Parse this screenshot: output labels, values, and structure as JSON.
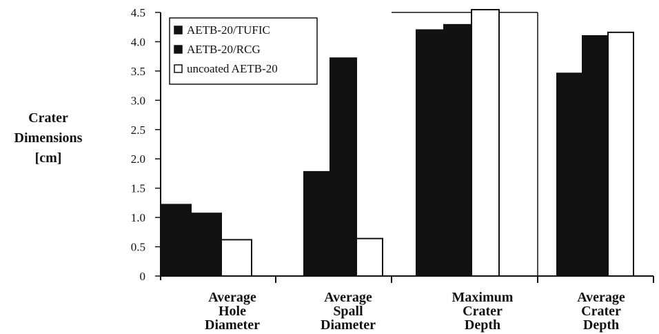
{
  "chart_data": {
    "type": "bar",
    "categories": [
      [
        "Average",
        "Hole",
        "Diameter"
      ],
      [
        "Average",
        "Spall",
        "Diameter"
      ],
      [
        "Maximum",
        "Crater",
        "Depth"
      ],
      [
        "Average",
        "Crater",
        "Depth"
      ]
    ],
    "series": [
      {
        "name": "AETB-20/TUFIC",
        "color": "#111111",
        "values": [
          1.22,
          1.78,
          4.2,
          3.46
        ]
      },
      {
        "name": "AETB-20/RCG",
        "color": "#111111",
        "values": [
          1.07,
          3.72,
          4.29,
          4.1
        ]
      },
      {
        "name": "uncoated AETB-20",
        "color": "#ffffff",
        "values": [
          0.62,
          0.64,
          4.55,
          4.16
        ]
      }
    ],
    "ylabel": [
      "Crater",
      "Dimensions",
      "[cm]"
    ],
    "ylim": [
      0,
      4.5
    ],
    "yticks": [
      "0",
      "0.5",
      "1.0",
      "1.5",
      "2.0",
      "2.5",
      "3.0",
      "3.5",
      "4.0",
      "4.5"
    ],
    "ytick_values": [
      0,
      0.5,
      1.0,
      1.5,
      2.0,
      2.5,
      3.0,
      3.5,
      4.0,
      4.5
    ],
    "legend_position": "top-left",
    "grid": false
  }
}
